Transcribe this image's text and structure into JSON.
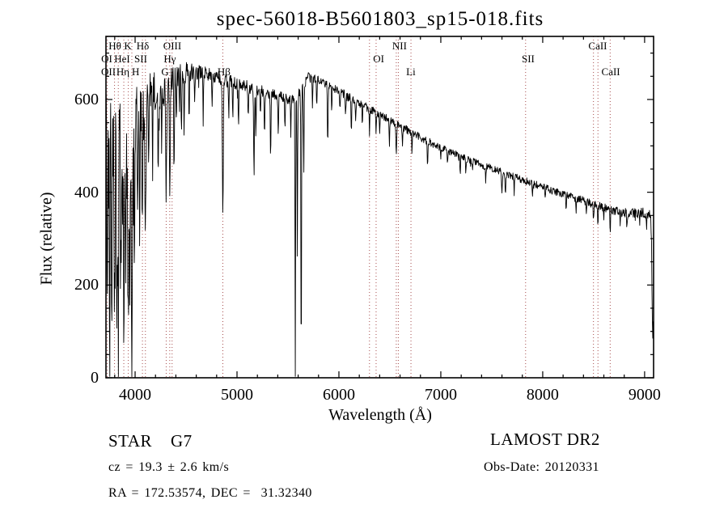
{
  "title": "spec-56018-B5601803_sp15-018.fits",
  "annotations": {
    "class_label": "STAR    G7",
    "cz": "cz = 19.3 ± 2.6 km/s",
    "radec": "RA = 172.53574, DEC =  31.32340",
    "survey": "LAMOST DR2",
    "obs_date": "Obs-Date: 20120331"
  },
  "chart_data": {
    "type": "line",
    "title": "spec-56018-B5601803_sp15-018.fits",
    "xlabel": "Wavelength (Å)",
    "ylabel": "Flux (relative)",
    "xlim": [
      3714,
      9088
    ],
    "ylim": [
      0,
      736
    ],
    "x_major_ticks": [
      4000,
      5000,
      6000,
      7000,
      8000,
      9000
    ],
    "x_minor_step": 200,
    "y_major_ticks": [
      0,
      200,
      400,
      600
    ],
    "y_minor_step": 50,
    "grid": false,
    "background_color": "#ffffff",
    "spectrum_color": "#000000",
    "line_marker_color": "#a64c4c",
    "axis_color": "#000000",
    "spectral_line_wavelengths": [
      3727,
      3798,
      3835,
      3889,
      3933,
      3968,
      4072,
      4101,
      4305,
      4340,
      4363,
      4861,
      6300,
      6365,
      6563,
      6583,
      6707,
      7832,
      8498,
      8542,
      8662
    ],
    "line_labels": [
      {
        "label": "Hθ",
        "row": 1,
        "wavelength": 3802
      },
      {
        "label": "K",
        "row": 1,
        "wavelength": 3929
      },
      {
        "label": "Hδ",
        "row": 1,
        "wavelength": 4075
      },
      {
        "label": "OIII",
        "row": 1,
        "wavelength": 4365
      },
      {
        "label": "NII",
        "row": 1,
        "wavelength": 6595
      },
      {
        "label": "CaII",
        "row": 1,
        "wavelength": 8540
      },
      {
        "label": "OI",
        "row": 2,
        "wavelength": 3722
      },
      {
        "label": "HeI",
        "row": 2,
        "wavelength": 3873
      },
      {
        "label": "SII",
        "row": 2,
        "wavelength": 4055
      },
      {
        "label": "Hγ",
        "row": 2,
        "wavelength": 4341
      },
      {
        "label": "OI",
        "row": 2,
        "wavelength": 6390
      },
      {
        "label": "SII",
        "row": 2,
        "wavelength": 7857
      },
      {
        "label": "OII",
        "row": 3,
        "wavelength": 3738
      },
      {
        "label": "Hη",
        "row": 3,
        "wavelength": 3880
      },
      {
        "label": "H",
        "row": 3,
        "wavelength": 4005
      },
      {
        "label": "G",
        "row": 3,
        "wavelength": 4294
      },
      {
        "label": "Hβ",
        "row": 3,
        "wavelength": 4872
      },
      {
        "label": "Li",
        "row": 3,
        "wavelength": 6706
      },
      {
        "label": "CaII",
        "row": 3,
        "wavelength": 8668
      }
    ],
    "spectrum_envelope": [
      [
        3714,
        500
      ],
      [
        3800,
        510
      ],
      [
        3900,
        520
      ],
      [
        3950,
        545
      ],
      [
        4000,
        565
      ],
      [
        4050,
        582
      ],
      [
        4100,
        600
      ],
      [
        4150,
        610
      ],
      [
        4200,
        615
      ],
      [
        4250,
        620
      ],
      [
        4300,
        626
      ],
      [
        4350,
        640
      ],
      [
        4400,
        650
      ],
      [
        4500,
        658
      ],
      [
        4600,
        660
      ],
      [
        4700,
        655
      ],
      [
        4800,
        648
      ],
      [
        4900,
        640
      ],
      [
        5000,
        634
      ],
      [
        5100,
        628
      ],
      [
        5200,
        620
      ],
      [
        5300,
        614
      ],
      [
        5400,
        608
      ],
      [
        5500,
        602
      ],
      [
        5560,
        600
      ],
      [
        5620,
        615
      ],
      [
        5700,
        648
      ],
      [
        5800,
        642
      ],
      [
        5900,
        632
      ],
      [
        6000,
        618
      ],
      [
        6100,
        604
      ],
      [
        6200,
        592
      ],
      [
        6300,
        580
      ],
      [
        6400,
        568
      ],
      [
        6500,
        556
      ],
      [
        6600,
        543
      ],
      [
        6700,
        530
      ],
      [
        6800,
        518
      ],
      [
        6900,
        507
      ],
      [
        7000,
        496
      ],
      [
        7100,
        486
      ],
      [
        7200,
        477
      ],
      [
        7300,
        468
      ],
      [
        7400,
        459
      ],
      [
        7500,
        451
      ],
      [
        7600,
        443
      ],
      [
        7700,
        435
      ],
      [
        7800,
        427
      ],
      [
        7900,
        419
      ],
      [
        8000,
        411
      ],
      [
        8100,
        403
      ],
      [
        8200,
        396
      ],
      [
        8300,
        389
      ],
      [
        8400,
        382
      ],
      [
        8500,
        374
      ],
      [
        8600,
        367
      ],
      [
        8700,
        360
      ],
      [
        8800,
        356
      ],
      [
        8900,
        354
      ],
      [
        9000,
        356
      ],
      [
        9040,
        352
      ],
      [
        9088,
        340
      ]
    ],
    "noise_amplitude": [
      [
        3714,
        140
      ],
      [
        3950,
        130
      ],
      [
        4000,
        80
      ],
      [
        4100,
        62
      ],
      [
        4200,
        48
      ],
      [
        4300,
        42
      ],
      [
        4400,
        26
      ],
      [
        4600,
        18
      ],
      [
        4900,
        15
      ],
      [
        5200,
        13
      ],
      [
        5600,
        11
      ],
      [
        6000,
        10
      ],
      [
        6500,
        9
      ],
      [
        7000,
        8
      ],
      [
        7600,
        8
      ],
      [
        8200,
        8
      ],
      [
        8700,
        9
      ],
      [
        9000,
        12
      ],
      [
        9088,
        14
      ]
    ],
    "absorption_features": [
      [
        3727,
        300,
        6
      ],
      [
        3750,
        350,
        5
      ],
      [
        3770,
        250,
        5
      ],
      [
        3798,
        380,
        6
      ],
      [
        3820,
        300,
        5
      ],
      [
        3835,
        320,
        6
      ],
      [
        3860,
        250,
        5
      ],
      [
        3889,
        350,
        6
      ],
      [
        3910,
        280,
        5
      ],
      [
        3933,
        420,
        7
      ],
      [
        3950,
        300,
        5
      ],
      [
        3968,
        420,
        7
      ],
      [
        3995,
        250,
        5
      ],
      [
        4026,
        180,
        5
      ],
      [
        4045,
        150,
        4
      ],
      [
        4072,
        260,
        5
      ],
      [
        4101,
        330,
        7
      ],
      [
        4132,
        160,
        5
      ],
      [
        4170,
        140,
        5
      ],
      [
        4226,
        200,
        5
      ],
      [
        4260,
        120,
        4
      ],
      [
        4305,
        230,
        7
      ],
      [
        4340,
        260,
        6
      ],
      [
        4383,
        190,
        5
      ],
      [
        4405,
        120,
        4
      ],
      [
        4435,
        90,
        4
      ],
      [
        4455,
        140,
        4
      ],
      [
        4481,
        130,
        4
      ],
      [
        4530,
        90,
        4
      ],
      [
        4585,
        70,
        4
      ],
      [
        4668,
        100,
        4
      ],
      [
        4755,
        60,
        4
      ],
      [
        4861,
        300,
        6
      ],
      [
        4920,
        90,
        4
      ],
      [
        4958,
        60,
        4
      ],
      [
        5015,
        100,
        4
      ],
      [
        5110,
        70,
        4
      ],
      [
        5167,
        200,
        5
      ],
      [
        5185,
        120,
        4
      ],
      [
        5230,
        70,
        4
      ],
      [
        5270,
        110,
        4
      ],
      [
        5330,
        150,
        4
      ],
      [
        5405,
        90,
        4
      ],
      [
        5470,
        70,
        4
      ],
      [
        5528,
        80,
        4
      ],
      [
        5572,
        640,
        4
      ],
      [
        5592,
        350,
        4
      ],
      [
        5630,
        650,
        4
      ],
      [
        5655,
        200,
        4
      ],
      [
        5740,
        70,
        4
      ],
      [
        5782,
        60,
        4
      ],
      [
        5890,
        130,
        5
      ],
      [
        5930,
        60,
        4
      ],
      [
        6010,
        50,
        4
      ],
      [
        6065,
        50,
        4
      ],
      [
        6122,
        70,
        4
      ],
      [
        6165,
        50,
        4
      ],
      [
        6230,
        50,
        4
      ],
      [
        6300,
        60,
        4
      ],
      [
        6365,
        45,
        4
      ],
      [
        6400,
        40,
        4
      ],
      [
        6495,
        55,
        4
      ],
      [
        6563,
        75,
        5
      ],
      [
        6625,
        35,
        4
      ],
      [
        6717,
        40,
        4
      ],
      [
        6870,
        55,
        5
      ],
      [
        7000,
        30,
        4
      ],
      [
        7065,
        30,
        4
      ],
      [
        7190,
        40,
        4
      ],
      [
        7245,
        30,
        4
      ],
      [
        7440,
        30,
        4
      ],
      [
        7600,
        50,
        5
      ],
      [
        7635,
        45,
        5
      ],
      [
        7720,
        35,
        4
      ],
      [
        7900,
        25,
        4
      ],
      [
        8025,
        25,
        4
      ],
      [
        8230,
        35,
        4
      ],
      [
        8327,
        30,
        4
      ],
      [
        8430,
        25,
        4
      ],
      [
        8498,
        45,
        4
      ],
      [
        8542,
        55,
        4
      ],
      [
        8600,
        30,
        3
      ],
      [
        8662,
        55,
        4
      ],
      [
        8760,
        25,
        3
      ],
      [
        8827,
        35,
        4
      ],
      [
        8950,
        25,
        3
      ],
      [
        9020,
        30,
        3
      ],
      [
        9080,
        270,
        10
      ]
    ]
  }
}
